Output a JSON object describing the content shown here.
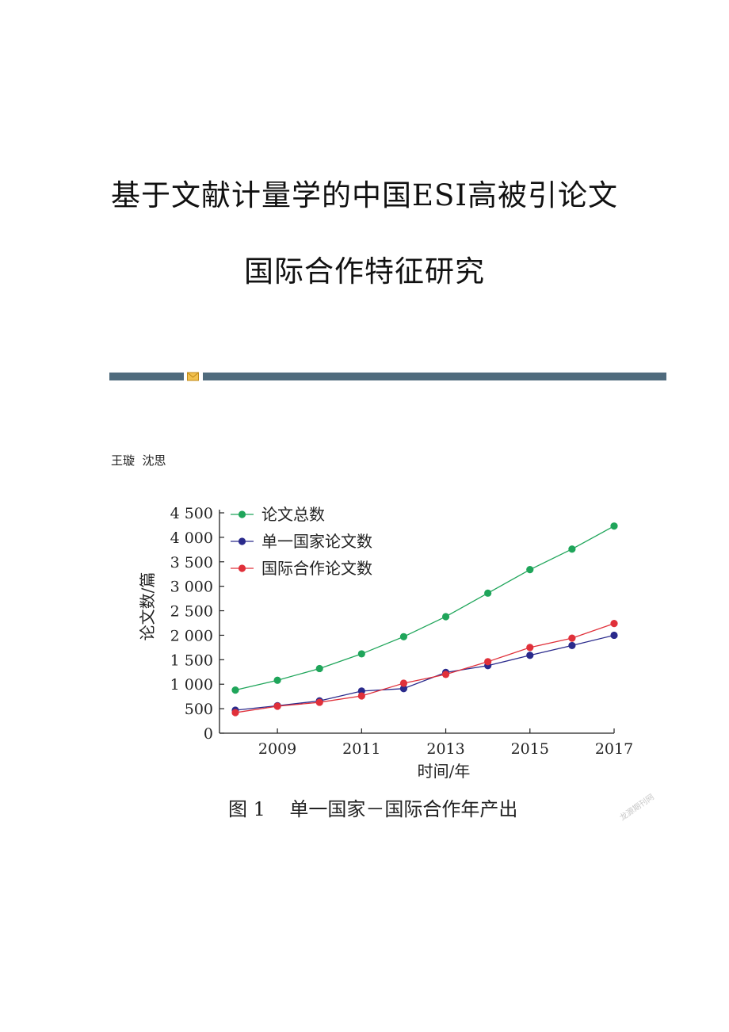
{
  "paper": {
    "title_line1": "基于文献计量学的中国ESI高被引论文",
    "title_line2": "国际合作特征研究",
    "authors": "王璇  沈思",
    "divider_color": "#4f6b7d"
  },
  "figure": {
    "caption": "图 1    单一国家－国际合作年产出",
    "watermark": "龙源期刊网"
  },
  "chart_data": {
    "type": "line",
    "title": "",
    "xlabel": "时间/年",
    "ylabel": "论文数/篇",
    "x": [
      2008,
      2009,
      2010,
      2011,
      2012,
      2013,
      2014,
      2015,
      2016,
      2017
    ],
    "xticks": [
      2009,
      2011,
      2013,
      2015,
      2017
    ],
    "xtick_labels": [
      "2009",
      "2011",
      "2013",
      "2015",
      "2017"
    ],
    "ylim": [
      0,
      4500
    ],
    "yticks": [
      0,
      500,
      1000,
      1500,
      2000,
      2500,
      3000,
      3500,
      4000,
      4500
    ],
    "ytick_labels": [
      "0",
      "500",
      "1 000",
      "1 500",
      "2 000",
      "2 500",
      "3 000",
      "3 500",
      "4 000",
      "4 500"
    ],
    "grid": false,
    "legend": "top-left",
    "series": [
      {
        "name": "论文总数",
        "color": "#1fa55a",
        "values": [
          880,
          1080,
          1320,
          1620,
          1970,
          2380,
          2860,
          3340,
          3760,
          4230
        ]
      },
      {
        "name": "单一国家论文数",
        "color": "#2a2a8c",
        "values": [
          470,
          560,
          660,
          860,
          910,
          1240,
          1380,
          1590,
          1790,
          2000
        ]
      },
      {
        "name": "国际合作论文数",
        "color": "#e0303a",
        "values": [
          420,
          550,
          630,
          760,
          1020,
          1200,
          1460,
          1750,
          1940,
          2240
        ]
      }
    ]
  }
}
